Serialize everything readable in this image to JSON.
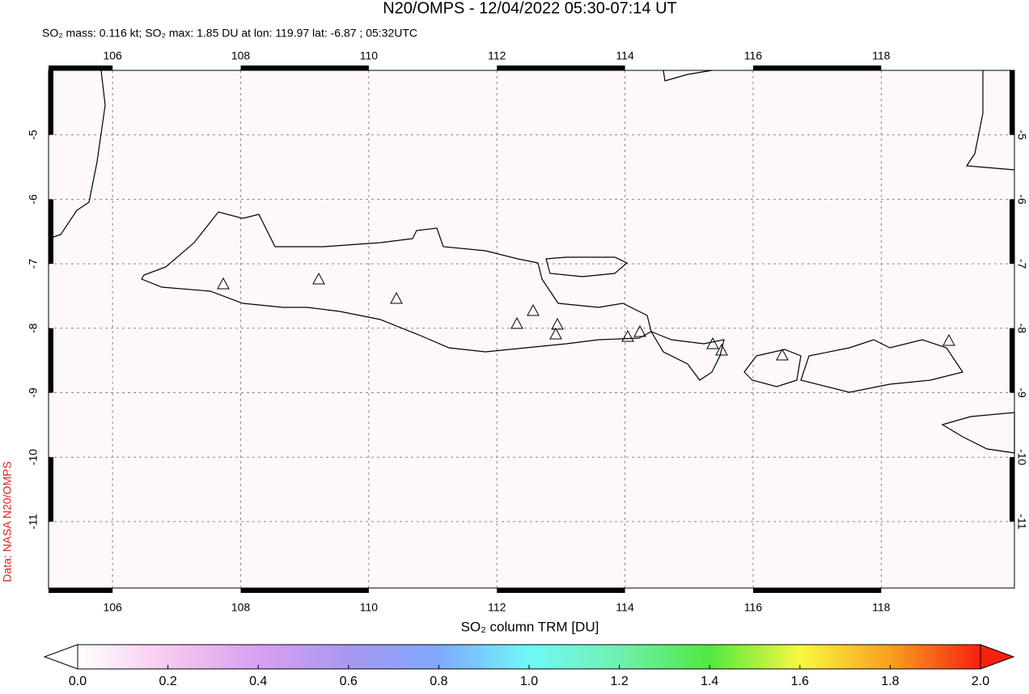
{
  "header": {
    "title": "N20/OMPS - 12/04/2022 05:30-07:14 UT",
    "subtitle": "SO₂ mass: 0.116 kt; SO₂ max: 1.85 DU at lon: 119.97 lat: -6.87 ; 05:32UTC"
  },
  "map": {
    "lonlim": [
      105,
      120.08
    ],
    "latlim": [
      -12.03,
      -4.0
    ],
    "lonticks": [
      106,
      108,
      110,
      112,
      114,
      116,
      118
    ],
    "latticks": [
      -5,
      -6,
      -7,
      -8,
      -9,
      -10,
      -11
    ],
    "grid": true
  },
  "colorbar": {
    "label": "SO₂ column TRM [DU]",
    "lim": [
      0,
      2
    ],
    "ticks": [
      {
        "value": 0,
        "label": "0.0"
      },
      {
        "value": 0.2,
        "label": "0.2"
      },
      {
        "value": 0.4,
        "label": "0.4"
      },
      {
        "value": 0.6,
        "label": "0.6"
      },
      {
        "value": 0.8,
        "label": "0.8"
      },
      {
        "value": 1,
        "label": "1.0"
      },
      {
        "value": 1.2,
        "label": "1.2"
      },
      {
        "value": 1.4,
        "label": "1.4"
      },
      {
        "value": 1.6,
        "label": "1.6"
      },
      {
        "value": 1.8,
        "label": "1.8"
      },
      {
        "value": 2,
        "label": "2.0"
      }
    ],
    "colors": [
      "#ffffff",
      "#f7c8ef",
      "#d8a0f0",
      "#a898f0",
      "#80a8ff",
      "#70f8f8",
      "#70f0b0",
      "#50e840",
      "#f8f840",
      "#f8a020",
      "#f82010"
    ]
  },
  "credit": "Data: NASA N20/OMPS"
}
